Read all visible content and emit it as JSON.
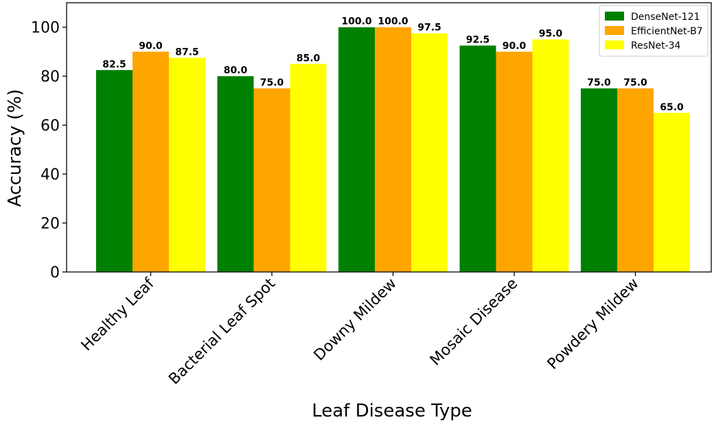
{
  "chart_data": {
    "type": "bar",
    "title": "",
    "xlabel": "Leaf Disease Type",
    "ylabel": "Accuracy (%)",
    "ylim": [
      0,
      110
    ],
    "yticks": [
      0,
      20,
      40,
      60,
      80,
      100
    ],
    "categories": [
      "Healthy Leaf",
      "Bacterial Leaf Spot",
      "Downy Mildew",
      "Mosaic Disease",
      "Powdery Mildew"
    ],
    "series": [
      {
        "name": "DenseNet-121",
        "color": "#008000",
        "values": [
          82.5,
          80.0,
          100.0,
          92.5,
          75.0
        ],
        "labels": [
          "82.5",
          "80.0",
          "100.0",
          "92.5",
          "75.0"
        ]
      },
      {
        "name": "EfficientNet-B7",
        "color": "#FFA500",
        "values": [
          90.0,
          75.0,
          100.0,
          90.0,
          75.0
        ],
        "labels": [
          "90.0",
          "75.0",
          "100.0",
          "90.0",
          "75.0"
        ]
      },
      {
        "name": "ResNet-34",
        "color": "#FFFF00",
        "values": [
          87.5,
          85.0,
          97.5,
          95.0,
          65.0
        ],
        "labels": [
          "87.5",
          "85.0",
          "97.5",
          "95.0",
          "65.0"
        ]
      }
    ],
    "legend_position": "top-right",
    "grid": false
  }
}
